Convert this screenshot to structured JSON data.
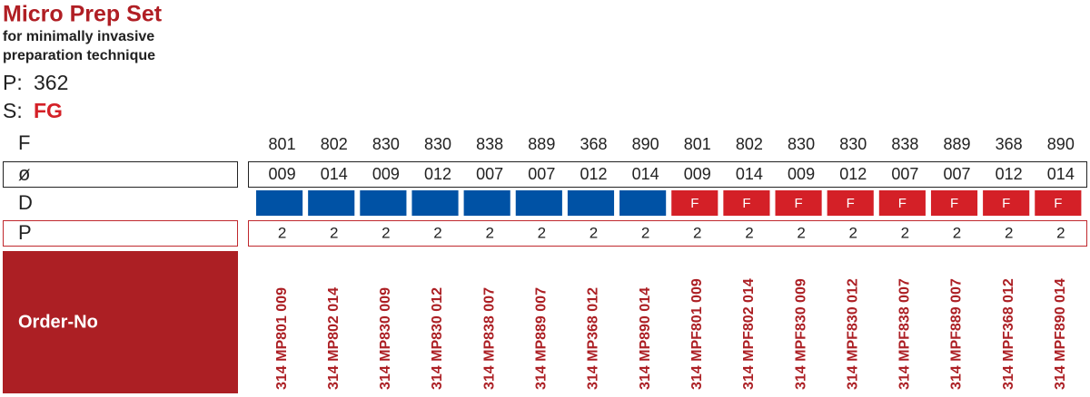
{
  "header": {
    "title": "Micro Prep Set",
    "subtitle": [
      "for minimally invasive",
      "preparation technique"
    ],
    "p_label": "P:",
    "p_value": "362",
    "s_label": "S:",
    "s_value": "FG"
  },
  "table": {
    "row_labels": [
      "F",
      "ø",
      "D",
      "P",
      "Order-No"
    ],
    "columns": [
      {
        "shape": "801",
        "diameter": "009",
        "d_color": "#0052a5",
        "p": "2",
        "order_no": "314 MP801 009"
      },
      {
        "shape": "802",
        "diameter": "014",
        "d_color": "#0052a5",
        "p": "2",
        "order_no": "314 MP802 014"
      },
      {
        "shape": "830",
        "diameter": "009",
        "d_color": "#0052a5",
        "p": "2",
        "order_no": "314 MP830 009"
      },
      {
        "shape": "830",
        "diameter": "012",
        "d_color": "#0052a5",
        "p": "2",
        "order_no": "314 MP830 012"
      },
      {
        "shape": "838",
        "diameter": "007",
        "d_color": "#0052a5",
        "p": "2",
        "order_no": "314 MP838 007"
      },
      {
        "shape": "889",
        "diameter": "007",
        "d_color": "#0052a5",
        "p": "2",
        "order_no": "314 MP889 007"
      },
      {
        "shape": "368",
        "diameter": "012",
        "d_color": "#0052a5",
        "p": "2",
        "order_no": "314 MP368 012"
      },
      {
        "shape": "890",
        "diameter": "014",
        "d_color": "#0052a5",
        "p": "2",
        "order_no": "314 MP890 014"
      },
      {
        "shape": "801",
        "diameter": "009",
        "d_color": "#d42027",
        "d_label": "F",
        "p": "2",
        "order_no": "314 MPF801 009"
      },
      {
        "shape": "802",
        "diameter": "014",
        "d_color": "#d42027",
        "d_label": "F",
        "p": "2",
        "order_no": "314 MPF802 014"
      },
      {
        "shape": "830",
        "diameter": "009",
        "d_color": "#d42027",
        "d_label": "F",
        "p": "2",
        "order_no": "314 MPF830 009"
      },
      {
        "shape": "830",
        "diameter": "012",
        "d_color": "#d42027",
        "d_label": "F",
        "p": "2",
        "order_no": "314 MPF830 012"
      },
      {
        "shape": "838",
        "diameter": "007",
        "d_color": "#d42027",
        "d_label": "F",
        "p": "2",
        "order_no": "314 MPF838 007"
      },
      {
        "shape": "889",
        "diameter": "007",
        "d_color": "#d42027",
        "d_label": "F",
        "p": "2",
        "order_no": "314 MPF889 007"
      },
      {
        "shape": "368",
        "diameter": "012",
        "d_color": "#d42027",
        "d_label": "F",
        "p": "2",
        "order_no": "314 MPF368 012"
      },
      {
        "shape": "890",
        "diameter": "014",
        "d_color": "#d42027",
        "d_label": "F",
        "p": "2",
        "order_no": "314 MPF890 014"
      }
    ]
  }
}
